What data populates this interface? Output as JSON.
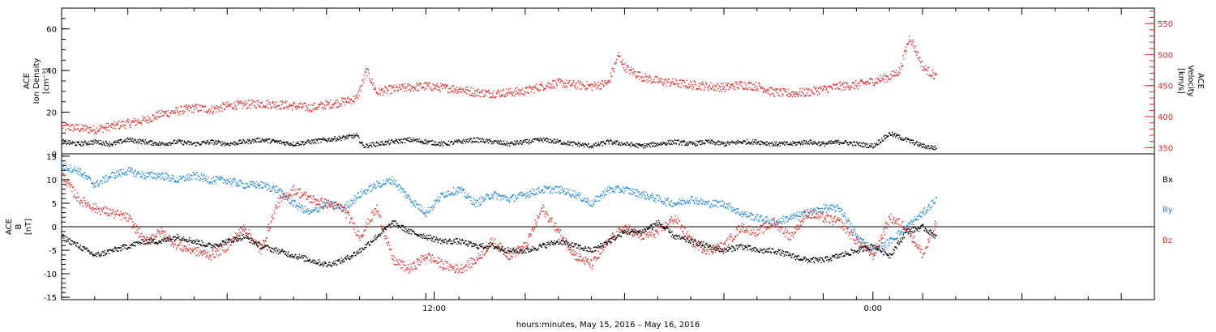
{
  "colors": {
    "black": "#000000",
    "red": "#e8231f",
    "blue": "#1a86e0"
  },
  "chart_data": [
    {
      "type": "scatter",
      "panel": "top",
      "ylabel_left": [
        "ACE",
        "Ion Density",
        "[cm⁻³]"
      ],
      "ylabel_right": [
        "ACE",
        "Velocity",
        "[km/s]"
      ],
      "ylim_left": [
        0,
        70
      ],
      "ylim_right": [
        340,
        575
      ],
      "yticks_left": [
        "0",
        "20",
        "40",
        "60"
      ],
      "yticks_right": [
        "350",
        "400",
        "450",
        "500",
        "550"
      ],
      "series": [
        {
          "color": "#000000",
          "axis": "left",
          "x_hours": [
            0.0,
            0.5,
            1.0,
            1.5,
            2.0,
            2.5,
            3.0,
            3.5,
            4.0,
            4.5,
            5.0,
            5.5,
            6.0,
            6.5,
            7.0,
            7.5,
            8.0,
            8.5,
            8.9,
            9.1,
            9.5,
            10.0,
            10.5,
            11.0,
            11.5,
            12.0,
            12.5,
            13.0,
            13.5,
            14.0,
            14.5,
            15.0,
            15.5,
            16.0,
            16.5,
            17.0,
            17.5,
            18.0,
            18.5,
            19.0,
            19.5,
            20.0,
            20.5,
            21.0,
            21.5,
            22.0,
            22.5,
            23.0,
            23.5,
            24.0,
            24.5,
            25.0,
            25.5,
            26.0,
            26.4
          ],
          "y": [
            6,
            5,
            6,
            5,
            7,
            6,
            5,
            6,
            5,
            6,
            5,
            6,
            7,
            6,
            5,
            6,
            7,
            8,
            9,
            4,
            5,
            6,
            7,
            6,
            5,
            6,
            7,
            6,
            5,
            6,
            7,
            6,
            5,
            4,
            6,
            5,
            4,
            5,
            6,
            5,
            6,
            5,
            6,
            6,
            5,
            5,
            6,
            5,
            6,
            5,
            4,
            10,
            7,
            4,
            3
          ]
        },
        {
          "color": "#e8231f",
          "axis": "right",
          "x_hours": [
            0.0,
            0.5,
            1.0,
            1.5,
            2.0,
            2.5,
            3.0,
            3.5,
            4.0,
            4.5,
            5.0,
            5.5,
            6.0,
            6.5,
            7.0,
            7.5,
            8.0,
            8.5,
            8.9,
            9.2,
            9.5,
            10.0,
            10.5,
            11.0,
            11.5,
            12.0,
            12.5,
            13.0,
            13.5,
            14.0,
            14.5,
            15.0,
            15.5,
            16.0,
            16.5,
            16.8,
            17.0,
            17.5,
            18.0,
            18.5,
            19.0,
            19.5,
            20.0,
            20.5,
            21.0,
            21.5,
            22.0,
            22.5,
            23.0,
            23.5,
            24.0,
            24.5,
            25.0,
            25.3,
            25.6,
            26.0,
            26.4
          ],
          "y": [
            385,
            382,
            380,
            385,
            390,
            395,
            405,
            410,
            415,
            412,
            418,
            420,
            422,
            420,
            418,
            415,
            420,
            425,
            430,
            475,
            440,
            445,
            448,
            450,
            447,
            445,
            440,
            438,
            440,
            442,
            450,
            455,
            452,
            450,
            455,
            500,
            480,
            465,
            458,
            455,
            452,
            450,
            448,
            452,
            450,
            440,
            438,
            440,
            445,
            450,
            452,
            458,
            465,
            475,
            530,
            480,
            465
          ]
        }
      ]
    },
    {
      "type": "scatter",
      "panel": "bottom",
      "ylabel_left": [
        "ACE",
        "B",
        "[nT]"
      ],
      "ylim": [
        -15.5,
        15.5
      ],
      "yticks": [
        "15",
        "10",
        "5",
        "0",
        "-5",
        "-10",
        "-15"
      ],
      "legend": [
        {
          "label": "Bx",
          "color": "#000000"
        },
        {
          "label": "By",
          "color": "#1a86e0"
        },
        {
          "label": "Bz",
          "color": "#e8231f"
        }
      ],
      "series": [
        {
          "name": "Bx",
          "color": "#000000",
          "x_hours": [
            0.0,
            0.5,
            1.0,
            1.5,
            2.0,
            2.5,
            3.0,
            3.5,
            4.0,
            4.5,
            5.0,
            5.5,
            6.0,
            6.5,
            7.0,
            7.5,
            8.0,
            8.5,
            9.0,
            9.5,
            10.0,
            10.5,
            11.0,
            11.5,
            12.0,
            12.5,
            13.0,
            13.5,
            14.0,
            14.5,
            15.0,
            15.5,
            16.0,
            16.5,
            17.0,
            17.5,
            18.0,
            18.5,
            19.0,
            19.5,
            20.0,
            20.5,
            21.0,
            21.5,
            22.0,
            22.5,
            23.0,
            23.5,
            24.0,
            24.5,
            25.0,
            25.5,
            26.0,
            26.4
          ],
          "y": [
            -2,
            -4,
            -6,
            -5,
            -4,
            -3,
            -3,
            -2,
            -3,
            -4,
            -3,
            -2,
            -4,
            -5,
            -6,
            -7,
            -8,
            -7,
            -5,
            -2,
            1,
            -1,
            -2,
            -3,
            -3,
            -4,
            -4,
            -5,
            -5,
            -4,
            -3,
            -4,
            -5,
            -3,
            -1,
            -1,
            1,
            -2,
            -3,
            -4,
            -5,
            -4,
            -5,
            -5,
            -6,
            -7,
            -7,
            -6,
            -5,
            -4,
            -6,
            -1,
            0,
            -2
          ]
        },
        {
          "name": "By",
          "color": "#1a86e0",
          "x_hours": [
            0.0,
            0.5,
            1.0,
            1.5,
            2.0,
            2.5,
            3.0,
            3.5,
            4.0,
            4.5,
            5.0,
            5.5,
            6.0,
            6.5,
            7.0,
            7.5,
            8.0,
            8.5,
            9.0,
            9.5,
            10.0,
            10.5,
            11.0,
            11.5,
            12.0,
            12.5,
            13.0,
            13.5,
            14.0,
            14.5,
            15.0,
            15.5,
            16.0,
            16.5,
            17.0,
            17.5,
            18.0,
            18.5,
            19.0,
            19.5,
            20.0,
            20.5,
            21.0,
            21.5,
            22.0,
            22.5,
            23.0,
            23.5,
            24.0,
            24.5,
            25.0,
            25.5,
            26.0,
            26.4
          ],
          "y": [
            13,
            12,
            9,
            11,
            12,
            11,
            11,
            10,
            11,
            10,
            10,
            9,
            9,
            8,
            5,
            3,
            5,
            4,
            7,
            9,
            10,
            6,
            3,
            7,
            8,
            5,
            7,
            6,
            7,
            8,
            8,
            7,
            5,
            8,
            8,
            7,
            6,
            5,
            6,
            5,
            5,
            3,
            2,
            1,
            2,
            3,
            4,
            4,
            -2,
            -5,
            -3,
            0,
            3,
            6
          ]
        },
        {
          "name": "Bz",
          "color": "#e8231f",
          "x_hours": [
            0.0,
            0.5,
            1.0,
            1.5,
            2.0,
            2.5,
            3.0,
            3.5,
            4.0,
            4.5,
            5.0,
            5.5,
            6.0,
            6.5,
            7.0,
            7.5,
            8.0,
            8.5,
            9.0,
            9.5,
            10.0,
            10.5,
            11.0,
            11.5,
            12.0,
            12.5,
            13.0,
            13.5,
            14.0,
            14.5,
            15.0,
            15.5,
            16.0,
            16.5,
            17.0,
            17.5,
            18.0,
            18.5,
            19.0,
            19.5,
            20.0,
            20.5,
            21.0,
            21.5,
            22.0,
            22.5,
            23.0,
            23.5,
            24.0,
            24.5,
            25.0,
            25.5,
            26.0,
            26.4
          ],
          "y": [
            11,
            6,
            4,
            3,
            2,
            -3,
            -1,
            -4,
            -5,
            -6,
            -4,
            0,
            -5,
            5,
            8,
            6,
            5,
            4,
            -2,
            4,
            -7,
            -9,
            -6,
            -8,
            -9,
            -7,
            -3,
            -6,
            -4,
            4,
            -1,
            -6,
            -8,
            -3,
            0,
            -2,
            -1,
            2,
            -3,
            -5,
            -4,
            0,
            -1,
            1,
            -2,
            3,
            2,
            1,
            -3,
            -6,
            2,
            0,
            -6,
            1
          ]
        }
      ]
    }
  ],
  "x_axis": {
    "xlim_hours": [
      0,
      33
    ],
    "tick_labels": [
      {
        "hour": 11.25,
        "label": "12:00"
      },
      {
        "hour": 24.5,
        "label": "0:00"
      }
    ],
    "xlabel": "hours:minutes, May 15, 2016 – May 16, 2016"
  }
}
